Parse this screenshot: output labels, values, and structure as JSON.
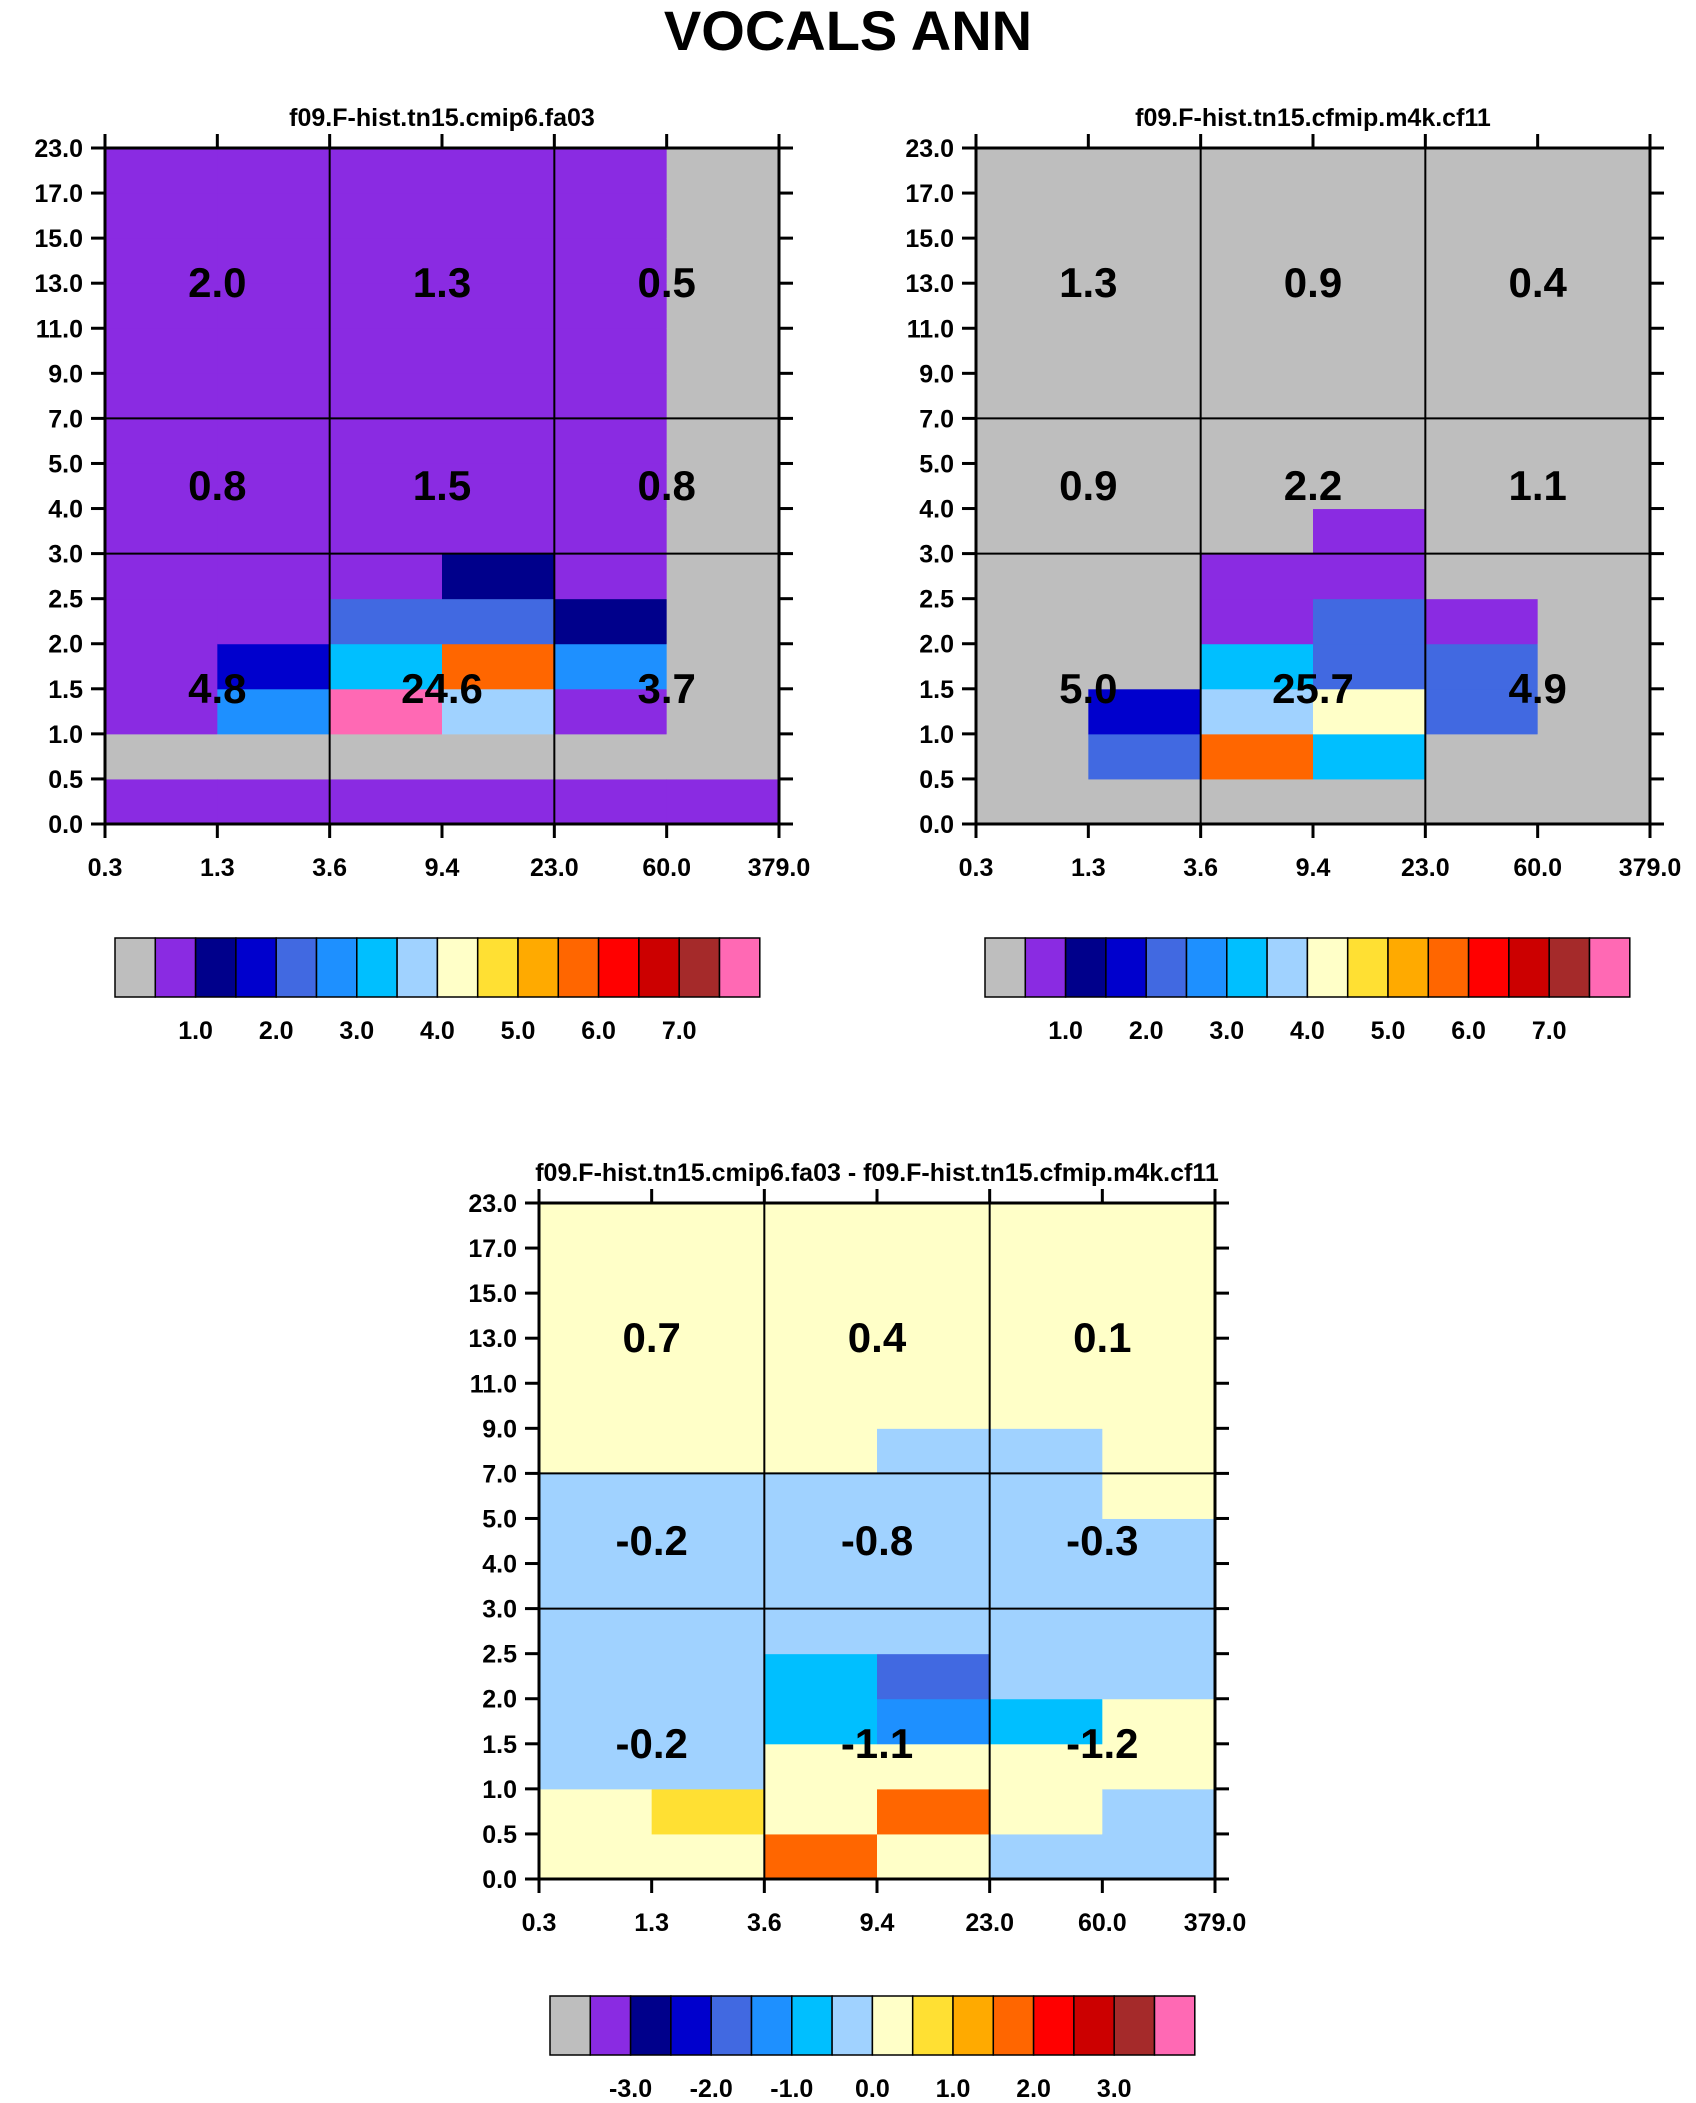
{
  "figure": {
    "title": "VOCALS ANN"
  },
  "chart_data": [
    {
      "type": "heatmap",
      "title": "f09.F-hist.tn15.cmip6.fa03",
      "x_edges": [
        "0.3",
        "1.3",
        "3.6",
        "9.4",
        "23.0",
        "60.0",
        "379.0"
      ],
      "y_edges": [
        "0.0",
        "0.5",
        "1.0",
        "1.5",
        "2.0",
        "2.5",
        "3.0",
        "4.0",
        "5.0",
        "7.0",
        "9.0",
        "11.0",
        "13.0",
        "15.0",
        "17.0",
        "23.0"
      ],
      "cells": [
        [
          1,
          0,
          1,
          1,
          1,
          1,
          1,
          1,
          1,
          1,
          1,
          1,
          1,
          1,
          1
        ],
        [
          1,
          0,
          5,
          3,
          1,
          1,
          1,
          1,
          1,
          1,
          1,
          1,
          1,
          1,
          1
        ],
        [
          1,
          0,
          15,
          6,
          4,
          1,
          1,
          1,
          1,
          1,
          1,
          1,
          1,
          1,
          1
        ],
        [
          1,
          0,
          7,
          11,
          4,
          2,
          1,
          1,
          1,
          1,
          1,
          1,
          1,
          1,
          1
        ],
        [
          1,
          0,
          1,
          5,
          2,
          1,
          1,
          1,
          1,
          1,
          1,
          1,
          1,
          1,
          1
        ],
        [
          1,
          0,
          0,
          0,
          0,
          0,
          0,
          0,
          0,
          0,
          0,
          0,
          0,
          0,
          0
        ]
      ],
      "block_values": [
        [
          "4.8",
          "24.6",
          "3.7"
        ],
        [
          "0.8",
          "1.5",
          "0.8"
        ],
        [
          "2.0",
          "1.3",
          "0.5"
        ]
      ],
      "colorbar": {
        "labels": [
          "1.0",
          "2.0",
          "3.0",
          "4.0",
          "5.0",
          "6.0",
          "7.0"
        ]
      }
    },
    {
      "type": "heatmap",
      "title": "f09.F-hist.tn15.cfmip.m4k.cf11",
      "x_edges": [
        "0.3",
        "1.3",
        "3.6",
        "9.4",
        "23.0",
        "60.0",
        "379.0"
      ],
      "y_edges": [
        "0.0",
        "0.5",
        "1.0",
        "1.5",
        "2.0",
        "2.5",
        "3.0",
        "4.0",
        "5.0",
        "7.0",
        "9.0",
        "11.0",
        "13.0",
        "15.0",
        "17.0",
        "23.0"
      ],
      "cells": [
        [
          0,
          0,
          0,
          0,
          0,
          0,
          0,
          0,
          0,
          0,
          0,
          0,
          0,
          0,
          0
        ],
        [
          0,
          4,
          3,
          0,
          0,
          0,
          0,
          0,
          0,
          0,
          0,
          0,
          0,
          0,
          0
        ],
        [
          0,
          11,
          7,
          6,
          1,
          1,
          0,
          0,
          0,
          0,
          0,
          0,
          0,
          0,
          0
        ],
        [
          0,
          6,
          8,
          4,
          4,
          1,
          1,
          0,
          0,
          0,
          0,
          0,
          0,
          0,
          0
        ],
        [
          0,
          0,
          4,
          4,
          1,
          0,
          0,
          0,
          0,
          0,
          0,
          0,
          0,
          0,
          0
        ],
        [
          0,
          0,
          0,
          0,
          0,
          0,
          0,
          0,
          0,
          0,
          0,
          0,
          0,
          0,
          0
        ]
      ],
      "block_values": [
        [
          "5.0",
          "25.7",
          "4.9"
        ],
        [
          "0.9",
          "2.2",
          "1.1"
        ],
        [
          "1.3",
          "0.9",
          "0.4"
        ]
      ],
      "colorbar": {
        "labels": [
          "1.0",
          "2.0",
          "3.0",
          "4.0",
          "5.0",
          "6.0",
          "7.0"
        ]
      }
    },
    {
      "type": "heatmap",
      "title": "f09.F-hist.tn15.cmip6.fa03 - f09.F-hist.tn15.cfmip.m4k.cf11",
      "x_edges": [
        "0.3",
        "1.3",
        "3.6",
        "9.4",
        "23.0",
        "60.0",
        "379.0"
      ],
      "y_edges": [
        "0.0",
        "0.5",
        "1.0",
        "1.5",
        "2.0",
        "2.5",
        "3.0",
        "4.0",
        "5.0",
        "7.0",
        "9.0",
        "11.0",
        "13.0",
        "15.0",
        "17.0",
        "23.0"
      ],
      "cells": [
        [
          8,
          8,
          7,
          7,
          7,
          7,
          7,
          7,
          7,
          8,
          8,
          8,
          8,
          8,
          8
        ],
        [
          8,
          9,
          7,
          7,
          7,
          7,
          7,
          7,
          7,
          8,
          8,
          8,
          8,
          8,
          8
        ],
        [
          11,
          8,
          8,
          6,
          6,
          7,
          7,
          7,
          7,
          8,
          8,
          8,
          8,
          8,
          8
        ],
        [
          8,
          11,
          8,
          5,
          4,
          7,
          7,
          7,
          7,
          7,
          8,
          8,
          8,
          8,
          8
        ],
        [
          7,
          8,
          8,
          6,
          7,
          7,
          7,
          7,
          7,
          7,
          8,
          8,
          8,
          8,
          8
        ],
        [
          7,
          7,
          8,
          8,
          7,
          7,
          7,
          7,
          8,
          8,
          8,
          8,
          8,
          8,
          8
        ]
      ],
      "block_values": [
        [
          "-0.2",
          "-1.1",
          "-1.2"
        ],
        [
          "-0.2",
          "-0.8",
          "-0.3"
        ],
        [
          "0.7",
          "0.4",
          "0.1"
        ]
      ],
      "colorbar": {
        "labels": [
          "-3.0",
          "-2.0",
          "-1.0",
          "0.0",
          "1.0",
          "2.0",
          "3.0"
        ]
      }
    }
  ],
  "palette": [
    "#bebebe",
    "#8a2be2",
    "#00008b",
    "#0000cd",
    "#4169e1",
    "#1e90ff",
    "#00bfff",
    "#a0d2ff",
    "#ffffc8",
    "#ffe033",
    "#ffaa00",
    "#ff6600",
    "#ff0000",
    "#cc0000",
    "#a52a2a",
    "#ff69b4"
  ]
}
